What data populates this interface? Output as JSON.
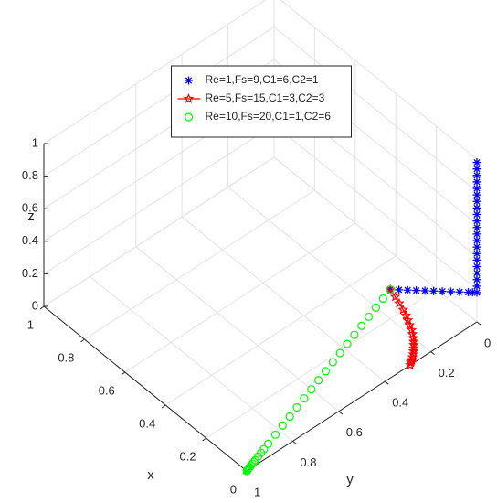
{
  "chart_data": {
    "type": "scatter3d",
    "xlabel": "x",
    "ylabel": "y",
    "zlabel": "z",
    "xlim": [
      0,
      1
    ],
    "ylim": [
      0,
      1
    ],
    "zlim": [
      0,
      1
    ],
    "xticks": [
      0,
      0.2,
      0.4,
      0.6,
      0.8,
      1
    ],
    "yticks": [
      0,
      0.2,
      0.4,
      0.6,
      0.8,
      1
    ],
    "zticks": [
      0,
      0.2,
      0.4,
      0.6,
      0.8,
      1
    ],
    "grid": true,
    "legend_location": "north",
    "series": [
      {
        "name": "Re=1,Fs=9,C1=6,C2=1",
        "color": "#0000ff",
        "marker": "asterisk",
        "line": false,
        "x": [
          0.2,
          0.18,
          0.16,
          0.14,
          0.12,
          0.1,
          0.08,
          0.06,
          0.04,
          0.02,
          0.01,
          0,
          0,
          0,
          0,
          0,
          0,
          0,
          0,
          0,
          0,
          0,
          0,
          0,
          0,
          0,
          0,
          0,
          0,
          0,
          0,
          0
        ],
        "y": [
          0.2,
          0.18,
          0.16,
          0.14,
          0.12,
          0.1,
          0.08,
          0.06,
          0.04,
          0.02,
          0.01,
          0,
          0,
          0,
          0,
          0,
          0,
          0,
          0,
          0,
          0,
          0,
          0,
          0,
          0,
          0,
          0,
          0,
          0,
          0,
          0,
          0
        ],
        "z": [
          0.18,
          0.18,
          0.18,
          0.18,
          0.18,
          0.18,
          0.18,
          0.18,
          0.18,
          0.18,
          0.18,
          0.18,
          0.22,
          0.26,
          0.3,
          0.34,
          0.38,
          0.42,
          0.46,
          0.5,
          0.54,
          0.58,
          0.62,
          0.66,
          0.7,
          0.74,
          0.78,
          0.82,
          0.86,
          0.9,
          0.94,
          0.98
        ]
      },
      {
        "name": "Re=5,Fs=15,C1=3,C2=3",
        "color": "#ff0000",
        "marker": "pentagram",
        "line": true,
        "x": [
          0.2,
          0.17,
          0.145,
          0.12,
          0.1,
          0.085,
          0.07,
          0.055,
          0.045,
          0.035,
          0.028,
          0.022,
          0.016,
          0.012,
          0.008,
          0.005,
          0.003,
          0.002,
          0.001,
          0
        ],
        "y": [
          0.2,
          0.205,
          0.21,
          0.215,
          0.22,
          0.225,
          0.23,
          0.235,
          0.24,
          0.245,
          0.25,
          0.255,
          0.26,
          0.265,
          0.27,
          0.275,
          0.28,
          0.283,
          0.286,
          0.29
        ],
        "z": [
          0.18,
          0.17,
          0.16,
          0.15,
          0.14,
          0.13,
          0.12,
          0.11,
          0.1,
          0.09,
          0.08,
          0.07,
          0.06,
          0.05,
          0.04,
          0.03,
          0.02,
          0.015,
          0.01,
          0
        ]
      },
      {
        "name": "Re=10,Fs=20,C1=1,C2=6",
        "color": "#00ff00",
        "marker": "circle",
        "line": false,
        "x": [
          0.2,
          0.19,
          0.18,
          0.17,
          0.16,
          0.15,
          0.14,
          0.13,
          0.12,
          0.11,
          0.1,
          0.09,
          0.08,
          0.07,
          0.06,
          0.05,
          0.04,
          0.03,
          0.024,
          0.02,
          0.016,
          0.012,
          0.01,
          0.008,
          0.006,
          0.004,
          0.003,
          0.002,
          0.001,
          0
        ],
        "y": [
          0.2,
          0.24,
          0.28,
          0.32,
          0.36,
          0.4,
          0.44,
          0.48,
          0.52,
          0.56,
          0.6,
          0.64,
          0.68,
          0.72,
          0.76,
          0.8,
          0.84,
          0.88,
          0.904,
          0.92,
          0.936,
          0.952,
          0.96,
          0.968,
          0.976,
          0.984,
          0.988,
          0.992,
          0.996,
          1
        ],
        "z": [
          0.18,
          0.171,
          0.162,
          0.153,
          0.144,
          0.135,
          0.126,
          0.117,
          0.108,
          0.099,
          0.09,
          0.081,
          0.072,
          0.063,
          0.054,
          0.045,
          0.036,
          0.027,
          0.0216,
          0.018,
          0.0144,
          0.0108,
          0.009,
          0.0072,
          0.0054,
          0.0036,
          0.0027,
          0.0018,
          0.0009,
          0
        ]
      }
    ]
  }
}
